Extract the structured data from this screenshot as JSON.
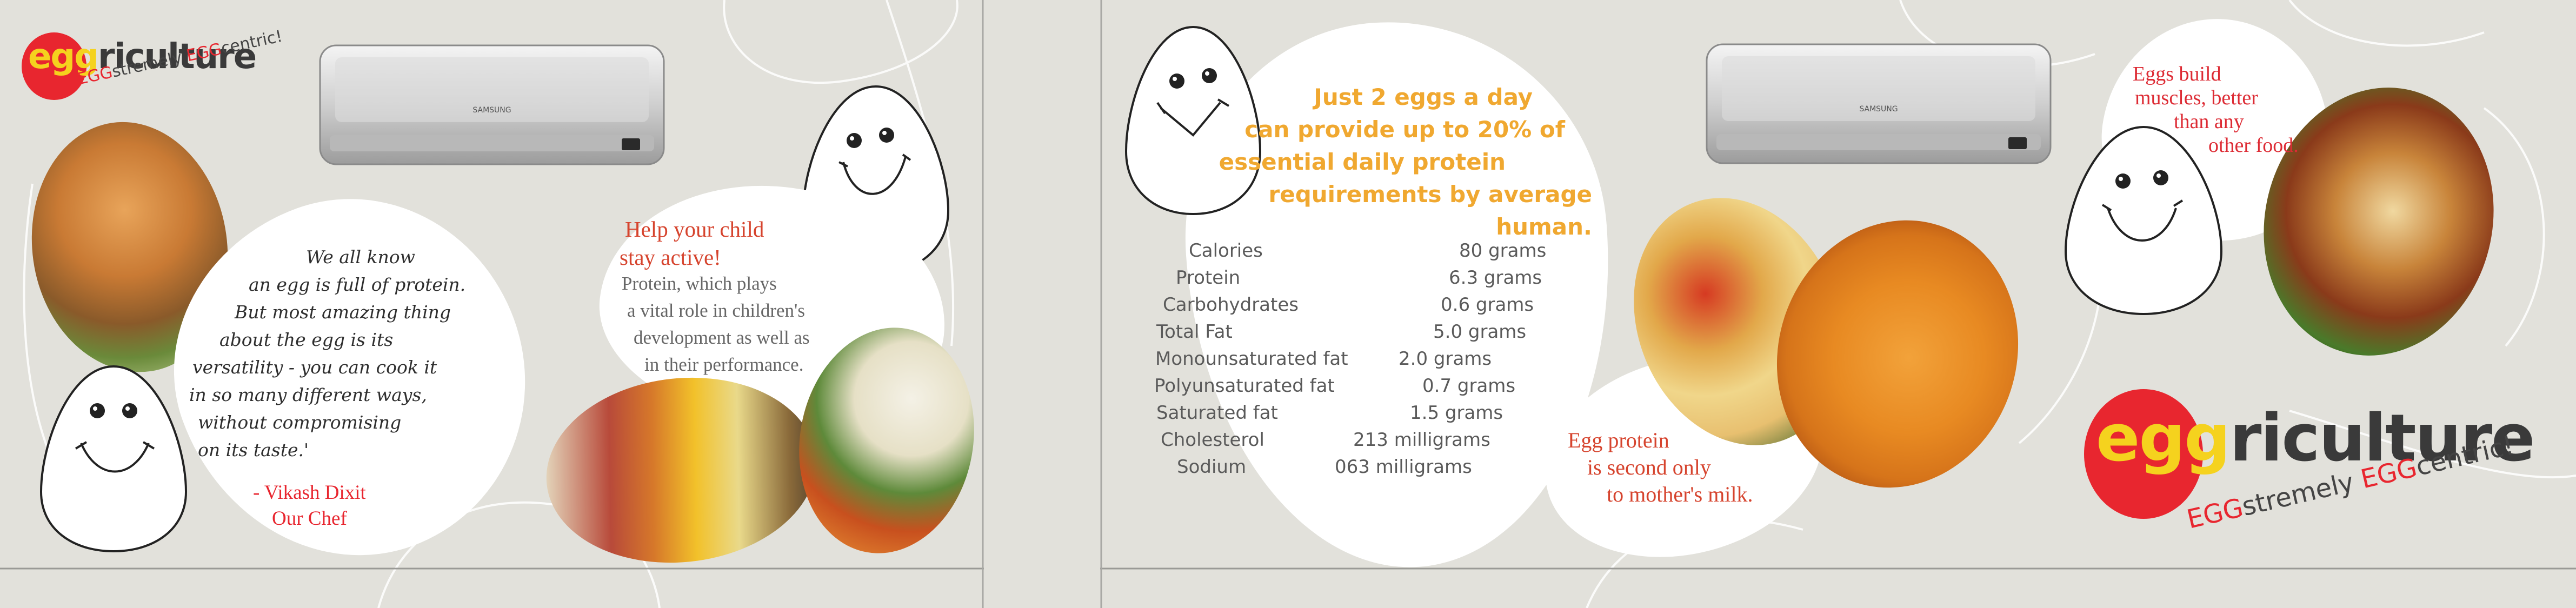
{
  "brand": {
    "word_prefix": "egg",
    "word_suffix": "riculture",
    "tagline_part1": "EGG",
    "tagline_part2": "stremely ",
    "tagline_part3": "EGG",
    "tagline_part4": "centric!"
  },
  "panel_left": {
    "quote_lines": [
      "We all know",
      "an egg is full of protein.",
      "But most amazing thing",
      "about the egg is its",
      "versatility - you can cook it",
      "in so many different ways,",
      "without compromising",
      "on its taste.'"
    ],
    "quote_author": "- Vikash Dixit",
    "quote_role": "Our Chef",
    "child_heading_1": "Help your child",
    "child_heading_2": "stay active!",
    "child_body_lines": [
      "Protein, which plays",
      "a vital role in children's",
      "development as well as",
      "in their performance."
    ]
  },
  "panel_right": {
    "protein_headline_lines": [
      "Just 2 eggs a day",
      "can provide up to 20% of",
      "essential daily protein",
      "requirements by average human."
    ],
    "nutrition": [
      {
        "name": "Calories",
        "value": "80 grams"
      },
      {
        "name": "Protein",
        "value": "6.3 grams"
      },
      {
        "name": "Carbohydrates",
        "value": "0.6 grams"
      },
      {
        "name": "Total Fat",
        "value": "5.0 grams"
      },
      {
        "name": "Monounsaturated fat",
        "value": "2.0 grams"
      },
      {
        "name": "Polyunsaturated fat",
        "value": "0.7 grams"
      },
      {
        "name": "Saturated fat",
        "value": "1.5 grams"
      },
      {
        "name": "Cholesterol",
        "value": "213 milligrams"
      },
      {
        "name": "Sodium",
        "value": "063 milligrams"
      }
    ],
    "milk_lines": [
      "Egg protein",
      "is second only",
      "to mother's milk."
    ],
    "muscle_lines": [
      "Eggs build",
      "muscles, better",
      "than any",
      "other food."
    ]
  },
  "ac_units": {
    "brand_label": "SAMSUNG"
  },
  "colors": {
    "background": "#e2e1db",
    "brand_red": "#e8262f",
    "brand_yellow": "#f5d21e",
    "accent_orange": "#f0a830",
    "heading_red": "#d6442e",
    "muscle_red": "#dd2b34",
    "text_gray": "#5a5a5a"
  },
  "icons": [
    "egg-smiley-icon",
    "air-conditioner-icon",
    "brand-logo"
  ]
}
